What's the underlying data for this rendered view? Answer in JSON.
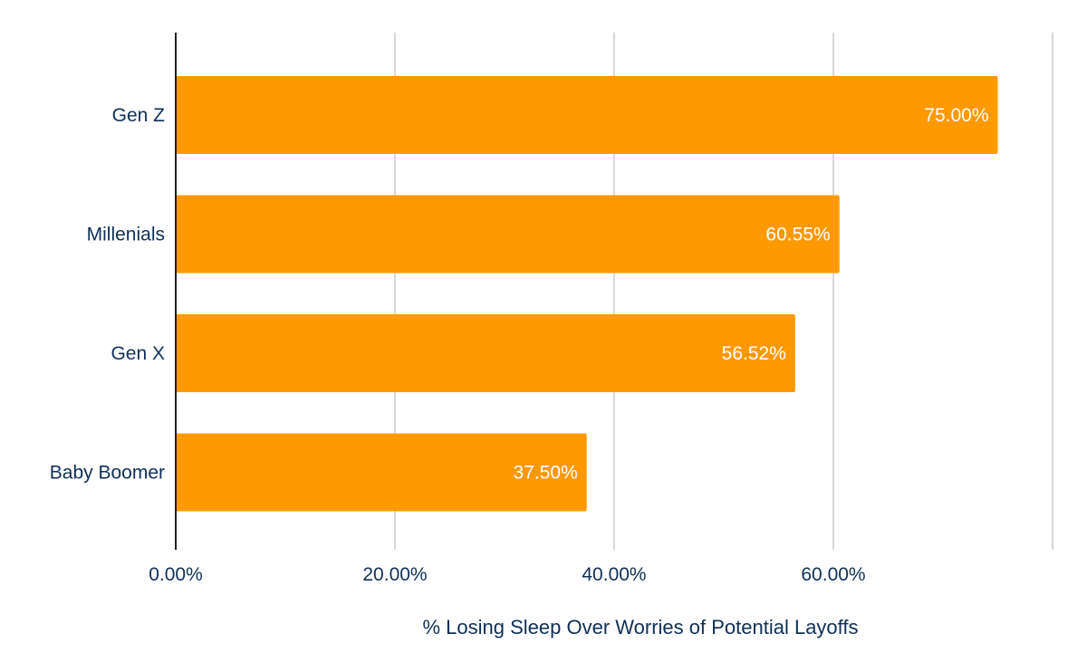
{
  "chart_data": {
    "type": "bar",
    "orientation": "horizontal",
    "categories": [
      "Gen Z",
      "Millenials",
      "Gen X",
      "Baby Boomer"
    ],
    "values": [
      75.0,
      60.55,
      56.52,
      37.5
    ],
    "value_labels": [
      "75.00%",
      "60.55%",
      "56.52%",
      "37.50%"
    ],
    "xlabel": "% Losing Sleep Over Worries of Potential Layoffs",
    "ylabel": "",
    "xlim": [
      0,
      80
    ],
    "xticks": [
      0,
      20,
      40,
      60
    ],
    "xtick_labels": [
      "0.00%",
      "20.00%",
      "40.00%",
      "60.00%"
    ],
    "grid": "vertical",
    "legend": "none"
  },
  "colors": {
    "bar": "#ff9900",
    "grid": "#cccccc",
    "axis": "#1f1f1f",
    "text": "#0f3057",
    "value_label": "#ffffff"
  }
}
